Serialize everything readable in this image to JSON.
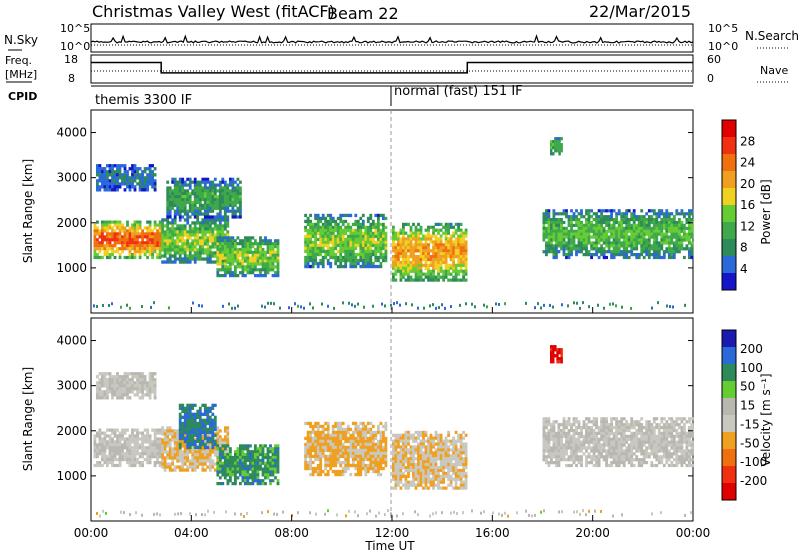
{
  "header": {
    "site": "Christmas Valley West (fitACF)",
    "beam": "Beam 22",
    "date": "22/Mar/2015"
  },
  "labels": {
    "nsky": "N.Sky",
    "nsearch": "N.Search",
    "freq": "Freq.",
    "freq_unit": "[MHz]",
    "nave": "Nave",
    "cpid": "CPID",
    "ylabel": "Slant Range [km]",
    "xlabel": "Time UT",
    "power_label": "Power [dB]",
    "velocity_label": "Velocity [m s⁻¹]"
  },
  "noise_panel": {
    "left_ticks": [
      "10^5",
      "10^0"
    ],
    "right_ticks": [
      "10^5",
      "10^0"
    ]
  },
  "freq_panel": {
    "left_ticks": [
      "18",
      "8"
    ],
    "right_ticks": [
      "60",
      "0"
    ],
    "freq_steps": [
      {
        "t0": 0,
        "t1": 2.8,
        "value": 15.5
      },
      {
        "t0": 2.8,
        "t1": 15.0,
        "value": 11.5
      },
      {
        "t0": 15.0,
        "t1": 24.0,
        "value": 15.5
      }
    ]
  },
  "cpid_segments": [
    {
      "text": "themis 3300 IF",
      "start_hour": 0
    },
    {
      "text": "normal (fast) 151 IF",
      "start_hour": 12
    }
  ],
  "colors": {
    "power": [
      "#1414c8",
      "#2a6ad8",
      "#2d8a5a",
      "#3fa84a",
      "#66cc33",
      "#f0d020",
      "#f0a020",
      "#f07010",
      "#f03010",
      "#e00000"
    ],
    "velocity": [
      "#1a1ab0",
      "#2a6ad8",
      "#2d8a5a",
      "#66cc33",
      "#b8b8b0",
      "#c8c8c0",
      "#f0a020",
      "#f07010",
      "#f03010",
      "#e00000"
    ]
  },
  "chart_data": [
    {
      "type": "heatmap",
      "name": "power",
      "ylabel": "Slant Range [km]",
      "ylim": [
        0,
        4500
      ],
      "yticks": [
        "1000",
        "2000",
        "3000",
        "4000"
      ],
      "xlim": [
        0,
        24
      ],
      "xticks": [
        "00:00",
        "04:00",
        "08:00",
        "12:00",
        "16:00",
        "20:00",
        "00:00"
      ],
      "colorbar_label": "Power [dB]",
      "colorbar_ticks": [
        "4",
        "8",
        "12",
        "16",
        "20",
        "24",
        "28"
      ],
      "colorbar_range": [
        0,
        30
      ],
      "echo_regions": [
        {
          "t0": 0.1,
          "t1": 2.8,
          "r0": 1200,
          "r1": 2050,
          "peak": 24
        },
        {
          "t0": 0.2,
          "t1": 2.6,
          "r0": 2700,
          "r1": 3300,
          "peak": 6
        },
        {
          "t0": 2.8,
          "t1": 5.5,
          "r0": 1100,
          "r1": 2100,
          "peak": 14
        },
        {
          "t0": 3.0,
          "t1": 6.0,
          "r0": 2100,
          "r1": 3000,
          "peak": 10
        },
        {
          "t0": 5.0,
          "t1": 7.5,
          "r0": 800,
          "r1": 1700,
          "peak": 14
        },
        {
          "t0": 8.5,
          "t1": 11.8,
          "r0": 1000,
          "r1": 2200,
          "peak": 14
        },
        {
          "t0": 12.0,
          "t1": 15.0,
          "r0": 700,
          "r1": 2000,
          "peak": 20
        },
        {
          "t0": 18.0,
          "t1": 24.0,
          "r0": 1200,
          "r1": 2300,
          "peak": 12
        },
        {
          "t0": 18.3,
          "t1": 18.8,
          "r0": 3500,
          "r1": 3900,
          "peak": 12
        }
      ]
    },
    {
      "type": "heatmap",
      "name": "velocity",
      "ylabel": "Slant Range [km]",
      "ylim": [
        0,
        4500
      ],
      "yticks": [
        "1000",
        "2000",
        "3000",
        "4000"
      ],
      "xlim": [
        0,
        24
      ],
      "xticks": [
        "00:00",
        "04:00",
        "08:00",
        "12:00",
        "16:00",
        "20:00",
        "00:00"
      ],
      "xlabel": "Time UT",
      "colorbar_label": "Velocity [m s⁻¹]",
      "colorbar_ticks": [
        "200",
        "100",
        "50",
        "15",
        "-15",
        "-50",
        "-100",
        "-200"
      ],
      "colorbar_range": [
        -250,
        250
      ],
      "echo_regions": [
        {
          "t0": 0.1,
          "t1": 2.8,
          "r0": 1200,
          "r1": 2050,
          "velocity": 0
        },
        {
          "t0": 0.2,
          "t1": 2.6,
          "r0": 2700,
          "r1": 3300,
          "velocity": 0
        },
        {
          "t0": 2.8,
          "t1": 5.5,
          "r0": 1100,
          "r1": 2100,
          "velocity": -50
        },
        {
          "t0": 3.5,
          "t1": 5.0,
          "r0": 1600,
          "r1": 2600,
          "velocity": 150
        },
        {
          "t0": 5.0,
          "t1": 7.5,
          "r0": 800,
          "r1": 1700,
          "velocity": 120
        },
        {
          "t0": 8.5,
          "t1": 11.8,
          "r0": 1000,
          "r1": 2200,
          "velocity": -60
        },
        {
          "t0": 12.0,
          "t1": 15.0,
          "r0": 700,
          "r1": 2000,
          "velocity": -40
        },
        {
          "t0": 18.0,
          "t1": 24.0,
          "r0": 1200,
          "r1": 2300,
          "velocity": 0
        },
        {
          "t0": 18.3,
          "t1": 18.8,
          "r0": 3500,
          "r1": 3900,
          "velocity": -220
        }
      ]
    }
  ]
}
